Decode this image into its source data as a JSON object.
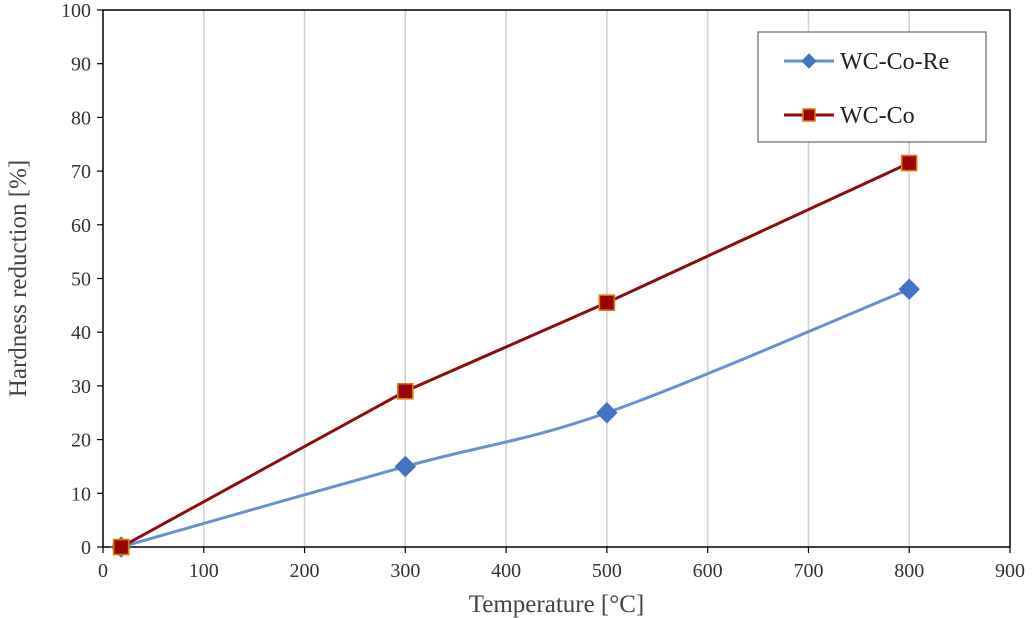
{
  "chart_data": {
    "type": "line",
    "xlabel": "Temperature [°C]",
    "ylabel": "Hardness reduction [%]",
    "xlim": [
      0,
      900
    ],
    "ylim": [
      0,
      100
    ],
    "x_ticks": [
      0,
      100,
      200,
      300,
      400,
      500,
      600,
      700,
      800,
      900
    ],
    "y_ticks": [
      0,
      10,
      20,
      30,
      40,
      50,
      60,
      70,
      80,
      90,
      100
    ],
    "grid": "vertical",
    "legend_position": "top-right",
    "series": [
      {
        "name": "WC-Co-Re",
        "marker": "diamond",
        "color": "#4472c4",
        "line_color": "#6a8fd1",
        "smooth": true,
        "x": [
          18,
          300,
          500,
          800
        ],
        "y": [
          0,
          15,
          25,
          48
        ]
      },
      {
        "name": "WC-Co",
        "marker": "square",
        "color": "#9c0000",
        "line_color": "#8b0d0d",
        "marker_edge_color": "#e07b00",
        "smooth": false,
        "x": [
          18,
          300,
          500,
          800
        ],
        "y": [
          0,
          29,
          45.5,
          71.5
        ]
      }
    ]
  }
}
